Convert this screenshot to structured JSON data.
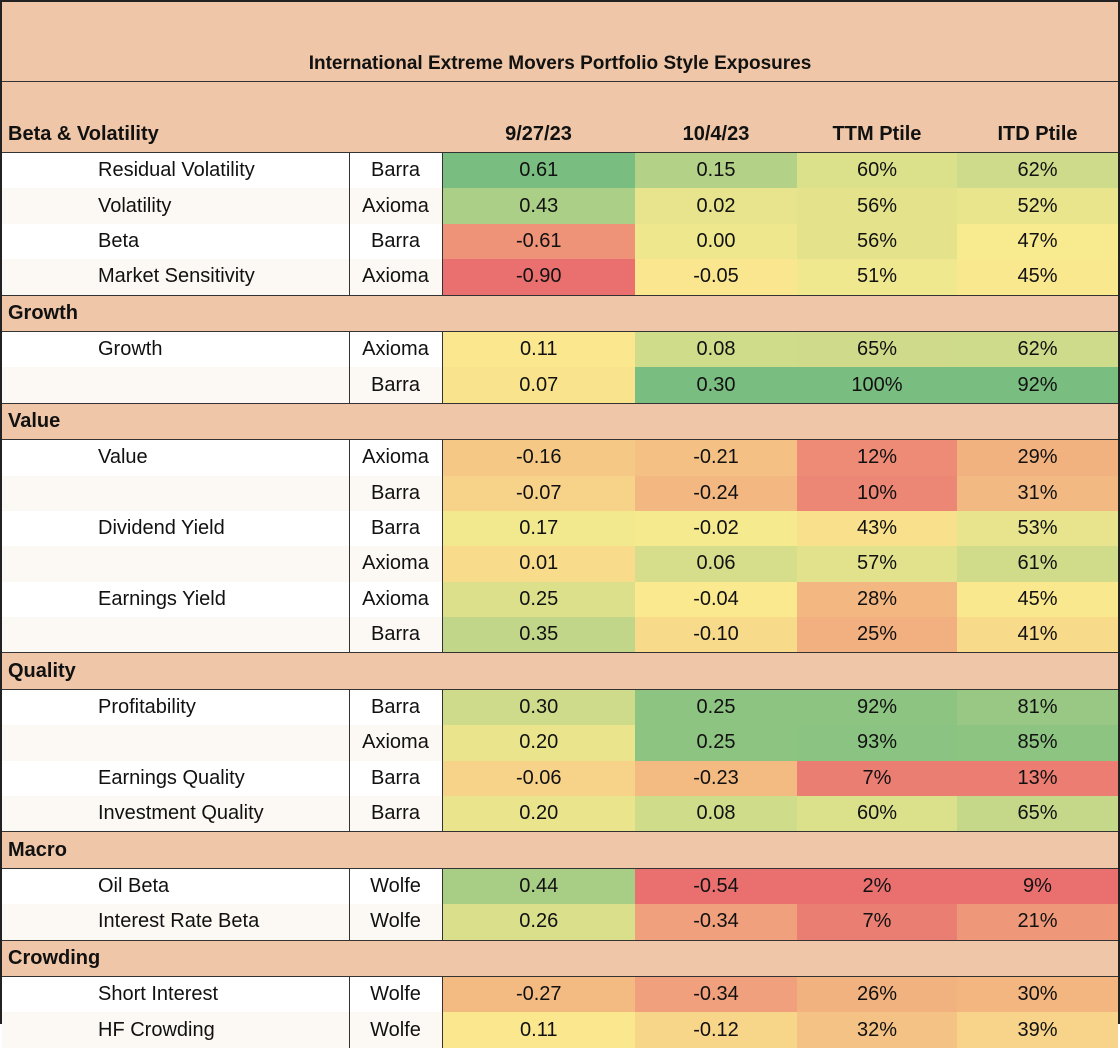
{
  "title": "International Extreme Movers Portfolio Style Exposures",
  "columns": {
    "c1": "9/27/23",
    "c2": "10/4/23",
    "c3": "TTM Ptile",
    "c4": "ITD Ptile"
  },
  "scale_colors": {
    "low": "#e9706f",
    "mid": "#faeb8f",
    "high": "#7abd80"
  },
  "sections": [
    {
      "label": "Beta & Volatility",
      "rows": [
        {
          "name": "Residual Volatility",
          "source": "Barra",
          "v1": "0.61",
          "v2": "0.15",
          "v3": "60%",
          "v4": "62%"
        },
        {
          "name": "Volatility",
          "source": "Axioma",
          "v1": "0.43",
          "v2": "0.02",
          "v3": "56%",
          "v4": "52%"
        },
        {
          "name": "Beta",
          "source": "Barra",
          "v1": "-0.61",
          "v2": "0.00",
          "v3": "56%",
          "v4": "47%"
        },
        {
          "name": "Market Sensitivity",
          "source": "Axioma",
          "v1": "-0.90",
          "v2": "-0.05",
          "v3": "51%",
          "v4": "45%"
        }
      ]
    },
    {
      "label": "Growth",
      "rows": [
        {
          "name": "Growth",
          "source": "Axioma",
          "v1": "0.11",
          "v2": "0.08",
          "v3": "65%",
          "v4": "62%"
        },
        {
          "name": "",
          "source": "Barra",
          "v1": "0.07",
          "v2": "0.30",
          "v3": "100%",
          "v4": "92%"
        }
      ]
    },
    {
      "label": "Value",
      "rows": [
        {
          "name": "Value",
          "source": "Axioma",
          "v1": "-0.16",
          "v2": "-0.21",
          "v3": "12%",
          "v4": "29%"
        },
        {
          "name": "",
          "source": "Barra",
          "v1": "-0.07",
          "v2": "-0.24",
          "v3": "10%",
          "v4": "31%"
        },
        {
          "name": "Dividend Yield",
          "source": "Barra",
          "v1": "0.17",
          "v2": "-0.02",
          "v3": "43%",
          "v4": "53%"
        },
        {
          "name": "",
          "source": "Axioma",
          "v1": "0.01",
          "v2": "0.06",
          "v3": "57%",
          "v4": "61%"
        },
        {
          "name": "Earnings Yield",
          "source": "Axioma",
          "v1": "0.25",
          "v2": "-0.04",
          "v3": "28%",
          "v4": "45%"
        },
        {
          "name": "",
          "source": "Barra",
          "v1": "0.35",
          "v2": "-0.10",
          "v3": "25%",
          "v4": "41%"
        }
      ]
    },
    {
      "label": "Quality",
      "rows": [
        {
          "name": "Profitability",
          "source": "Barra",
          "v1": "0.30",
          "v2": "0.25",
          "v3": "92%",
          "v4": "81%"
        },
        {
          "name": "",
          "source": "Axioma",
          "v1": "0.20",
          "v2": "0.25",
          "v3": "93%",
          "v4": "85%"
        },
        {
          "name": "Earnings Quality",
          "source": "Barra",
          "v1": "-0.06",
          "v2": "-0.23",
          "v3": "7%",
          "v4": "13%"
        },
        {
          "name": "Investment Quality",
          "source": "Barra",
          "v1": "0.20",
          "v2": "0.08",
          "v3": "60%",
          "v4": "65%"
        }
      ]
    },
    {
      "label": "Macro",
      "rows": [
        {
          "name": "Oil Beta",
          "source": "Wolfe",
          "v1": "0.44",
          "v2": "-0.54",
          "v3": "2%",
          "v4": "9%"
        },
        {
          "name": "Interest Rate Beta",
          "source": "Wolfe",
          "v1": "0.26",
          "v2": "-0.34",
          "v3": "7%",
          "v4": "21%"
        }
      ]
    },
    {
      "label": "Crowding",
      "rows": [
        {
          "name": "Short Interest",
          "source": "Wolfe",
          "v1": "-0.27",
          "v2": "-0.34",
          "v3": "26%",
          "v4": "30%"
        },
        {
          "name": "HF Crowding",
          "source": "Wolfe",
          "v1": "0.11",
          "v2": "-0.12",
          "v3": "32%",
          "v4": "39%"
        }
      ]
    }
  ]
}
